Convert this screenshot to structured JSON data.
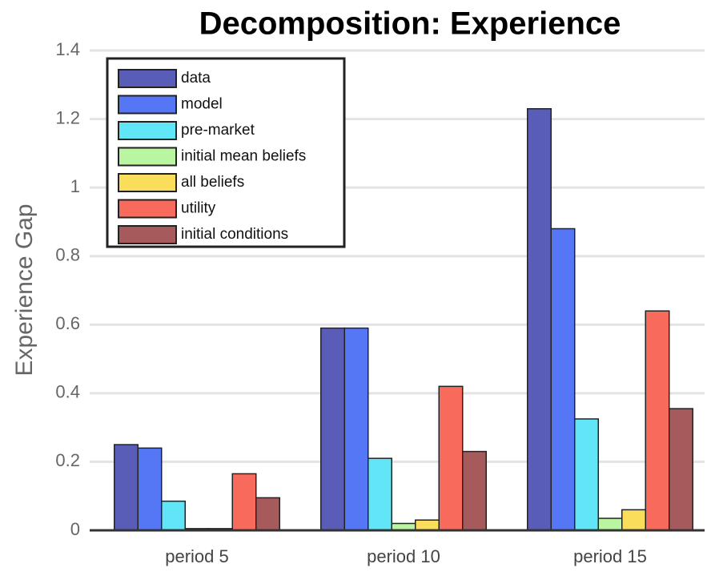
{
  "chart_data": {
    "type": "bar",
    "title": "Decomposition: Experience",
    "y_label": "Experience Gap",
    "categories": [
      "period 5",
      "period 10",
      "period 15"
    ],
    "series": [
      {
        "name": "data",
        "color": "#5a5db8",
        "values": [
          0.25,
          0.59,
          1.23
        ]
      },
      {
        "name": "model",
        "color": "#5577f6",
        "values": [
          0.24,
          0.59,
          0.88
        ]
      },
      {
        "name": "pre-market",
        "color": "#60e6f6",
        "values": [
          0.085,
          0.21,
          0.325
        ]
      },
      {
        "name": "initial mean beliefs",
        "color": "#baf5a2",
        "values": [
          0.005,
          0.02,
          0.035
        ]
      },
      {
        "name": "all beliefs",
        "color": "#fbdd5c",
        "values": [
          0.005,
          0.03,
          0.06
        ]
      },
      {
        "name": "utility",
        "color": "#f86b5c",
        "values": [
          0.165,
          0.42,
          0.64
        ]
      },
      {
        "name": "initial conditions",
        "color": "#a65a5c",
        "values": [
          0.095,
          0.23,
          0.355
        ]
      }
    ],
    "ylim": [
      0,
      1.4
    ],
    "yticks": [
      0,
      0.2,
      0.4,
      0.6,
      0.8,
      1,
      1.2,
      1.4
    ],
    "grid": true,
    "legend": "upper-left"
  }
}
